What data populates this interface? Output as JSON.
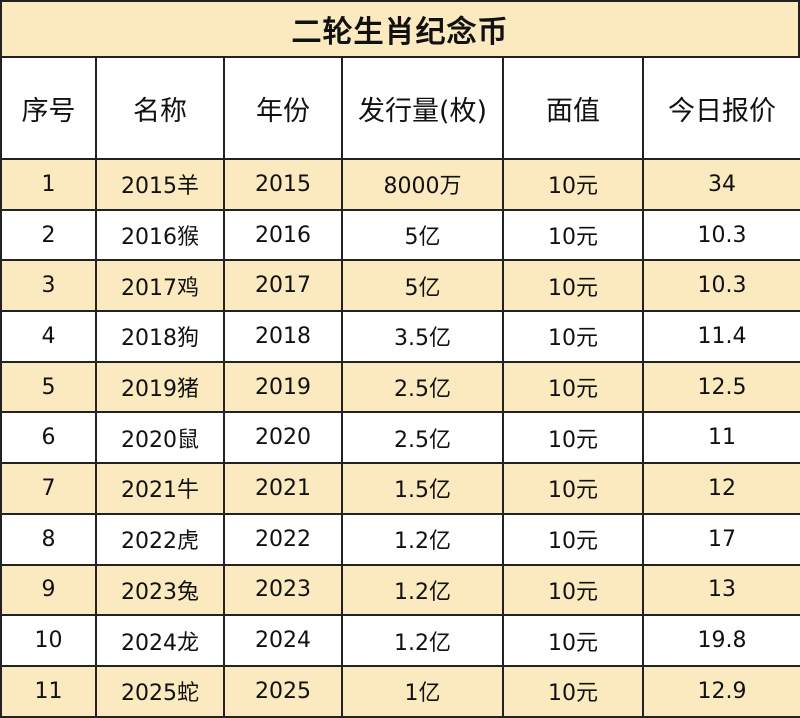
{
  "title": "二轮生肖纪念币",
  "headers": [
    "序号",
    "名称",
    "年份",
    "发行量(枚)",
    "面值",
    "今日报价"
  ],
  "rows": [
    [
      "1",
      "2015羊",
      "2015",
      "8000万",
      "10元",
      "34"
    ],
    [
      "2",
      "2016猴",
      "2016",
      "5亿",
      "10元",
      "10.3"
    ],
    [
      "3",
      "2017鸡",
      "2017",
      "5亿",
      "10元",
      "10.3"
    ],
    [
      "4",
      "2018狗",
      "2018",
      "3.5亿",
      "10元",
      "11.4"
    ],
    [
      "5",
      "2019猪",
      "2019",
      "2.5亿",
      "10元",
      "12.5"
    ],
    [
      "6",
      "2020鼠",
      "2020",
      "2.5亿",
      "10元",
      "11"
    ],
    [
      "7",
      "2021牛",
      "2021",
      "1.5亿",
      "10元",
      "12"
    ],
    [
      "8",
      "2022虎",
      "2022",
      "1.2亿",
      "10元",
      "17"
    ],
    [
      "9",
      "2023兔",
      "2023",
      "1.2亿",
      "10元",
      "13"
    ],
    [
      "10",
      "2024龙",
      "2024",
      "1.2亿",
      "10元",
      "19.8"
    ],
    [
      "11",
      "2025蛇",
      "2025",
      "1亿",
      "10元",
      "12.9"
    ]
  ],
  "colors": {
    "highlight_row": "#fbe9bf",
    "plain_row": "#ffffff",
    "border": "#222222"
  }
}
